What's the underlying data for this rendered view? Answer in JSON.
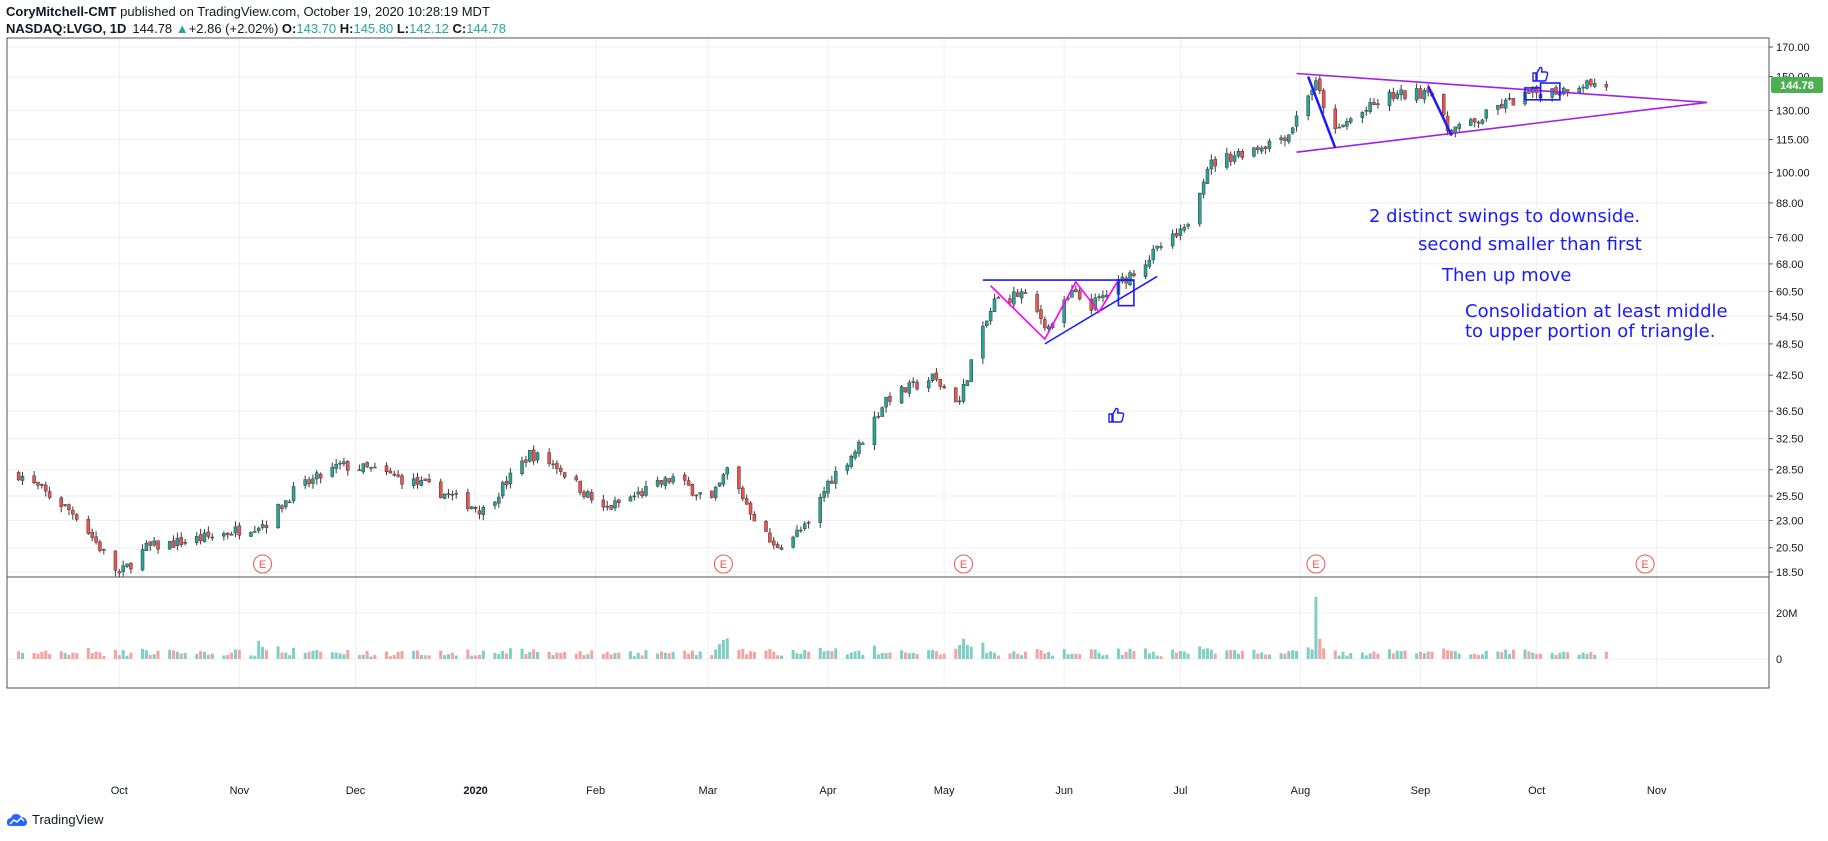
{
  "header": {
    "author": "CoryMitchell-CMT",
    "published_text": "published on TradingView.com, October 19, 2020 10:28:19 MDT",
    "symbol": "NASDAQ:LVGO, 1D",
    "last": "144.78",
    "change": "+2.86 (+2.02%)",
    "o_label": "O:",
    "o": "143.70",
    "h_label": "H:",
    "h": "145.80",
    "l_label": "L:",
    "l": "142.12",
    "c_label": "C:",
    "c": "144.78"
  },
  "branding": "TradingView",
  "colors": {
    "up": "#26a69a",
    "down": "#ef5350",
    "vol_up": "#7fcfc6",
    "vol_down": "#f5a3a1",
    "grid": "#eef0f3",
    "triangle": "#a020f0",
    "pattern_blue": "#1a1aff",
    "pattern_pink": "#ff00ff",
    "annotation_text": "#1a1aff",
    "price_badge": "#4caf50"
  },
  "chart_data": {
    "type": "candlestick",
    "symbol": "NASDAQ:LVGO",
    "interval": "1D",
    "x_ticks": [
      "Oct",
      "Nov",
      "Dec",
      "2020",
      "Feb",
      "Mar",
      "Apr",
      "May",
      "Jun",
      "Jul",
      "Aug",
      "Sep",
      "Oct",
      "Nov"
    ],
    "y_ticks": [
      "170.00",
      "150.00",
      "130.00",
      "115.00",
      "100.00",
      "88.00",
      "76.00",
      "68.00",
      "60.50",
      "54.50",
      "48.50",
      "42.50",
      "36.50",
      "32.50",
      "28.50",
      "25.50",
      "23.00",
      "20.50",
      "18.50"
    ],
    "y_scale": "log",
    "last_price_badge": "144.78",
    "volume_ticks": [
      "20M",
      "0"
    ],
    "earnings_marker": "E",
    "earnings_dates": [
      "2019-11-07",
      "2020-03-05",
      "2020-05-06",
      "2020-08-05",
      "2020-10-29"
    ],
    "price_anchors": [
      {
        "date": "2019-09-05",
        "price": 28.0
      },
      {
        "date": "2019-09-20",
        "price": 23.5
      },
      {
        "date": "2019-10-01",
        "price": 18.3
      },
      {
        "date": "2019-10-08",
        "price": 20.5
      },
      {
        "date": "2019-10-25",
        "price": 21.5
      },
      {
        "date": "2019-11-08",
        "price": 22.8
      },
      {
        "date": "2019-11-15",
        "price": 26.0
      },
      {
        "date": "2019-11-27",
        "price": 29.0
      },
      {
        "date": "2019-12-05",
        "price": 28.5
      },
      {
        "date": "2019-12-20",
        "price": 26.5
      },
      {
        "date": "2020-01-03",
        "price": 24.0
      },
      {
        "date": "2020-01-15",
        "price": 30.5
      },
      {
        "date": "2020-01-22",
        "price": 29.0
      },
      {
        "date": "2020-02-03",
        "price": 24.0
      },
      {
        "date": "2020-02-21",
        "price": 27.5
      },
      {
        "date": "2020-03-02",
        "price": 25.0
      },
      {
        "date": "2020-03-06",
        "price": 28.5
      },
      {
        "date": "2020-03-12",
        "price": 24.0
      },
      {
        "date": "2020-03-18",
        "price": 20.5
      },
      {
        "date": "2020-03-27",
        "price": 22.5
      },
      {
        "date": "2020-04-01",
        "price": 27.0
      },
      {
        "date": "2020-04-09",
        "price": 31.5
      },
      {
        "date": "2020-04-16",
        "price": 38.5
      },
      {
        "date": "2020-04-28",
        "price": 42.0
      },
      {
        "date": "2020-05-05",
        "price": 38.0
      },
      {
        "date": "2020-05-08",
        "price": 45.0
      },
      {
        "date": "2020-05-14",
        "price": 58.0
      },
      {
        "date": "2020-05-21",
        "price": 60.0
      },
      {
        "date": "2020-05-28",
        "price": 52.0
      },
      {
        "date": "2020-06-03",
        "price": 60.0
      },
      {
        "date": "2020-06-08",
        "price": 57.0
      },
      {
        "date": "2020-06-12",
        "price": 60.0
      },
      {
        "date": "2020-06-19",
        "price": 66.0
      },
      {
        "date": "2020-06-26",
        "price": 73.0
      },
      {
        "date": "2020-07-02",
        "price": 78.0
      },
      {
        "date": "2020-07-08",
        "price": 103.0
      },
      {
        "date": "2020-07-15",
        "price": 108.0
      },
      {
        "date": "2020-07-22",
        "price": 112.0
      },
      {
        "date": "2020-07-29",
        "price": 118.0
      },
      {
        "date": "2020-08-03",
        "price": 140.0
      },
      {
        "date": "2020-08-05",
        "price": 145.0
      },
      {
        "date": "2020-08-10",
        "price": 118.0
      },
      {
        "date": "2020-08-13",
        "price": 124.0
      },
      {
        "date": "2020-08-24",
        "price": 138.0
      },
      {
        "date": "2020-09-01",
        "price": 140.0
      },
      {
        "date": "2020-09-03",
        "price": 144.0
      },
      {
        "date": "2020-09-08",
        "price": 120.0
      },
      {
        "date": "2020-09-15",
        "price": 123.0
      },
      {
        "date": "2020-09-21",
        "price": 132.0
      },
      {
        "date": "2020-09-30",
        "price": 140.0
      },
      {
        "date": "2020-10-08",
        "price": 142.0
      },
      {
        "date": "2020-10-13",
        "price": 146.0
      },
      {
        "date": "2020-10-19",
        "price": 144.78
      }
    ],
    "volume_spike": {
      "date": "2020-08-05",
      "value_millions": 27
    }
  },
  "annotations": {
    "line1": "2 distinct swings to downside.",
    "line2": "second smaller than first",
    "line3": "Then up move",
    "line4a": "Consolidation at least middle",
    "line4b": "to upper portion of triangle."
  }
}
